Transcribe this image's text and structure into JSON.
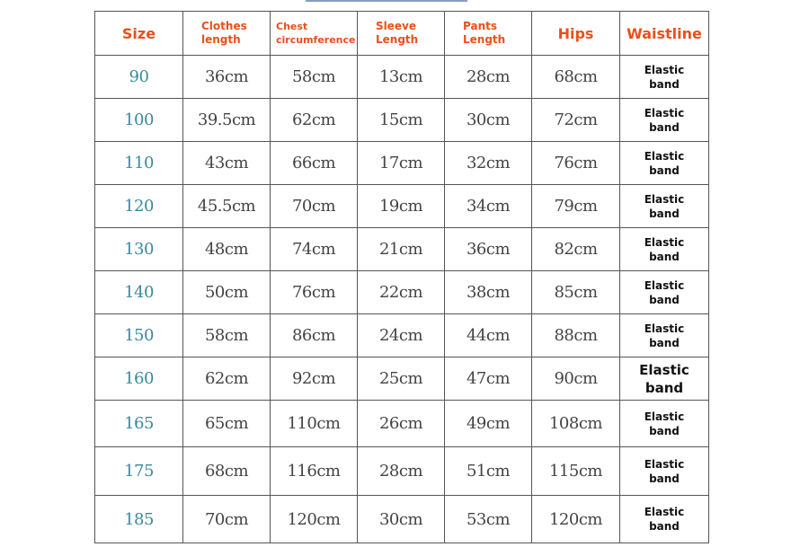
{
  "table": {
    "header": [
      "Size",
      "Clothes length",
      "Chest circumference",
      "Sleeve Length",
      "Pants Length",
      "Hips",
      "Waistline"
    ],
    "rows": [
      [
        "90",
        "36cm",
        "58cm",
        "13cm",
        "28cm",
        "68cm",
        "Elastic band"
      ],
      [
        "100",
        "39.5cm",
        "62cm",
        "15cm",
        "30cm",
        "72cm",
        "Elastic band"
      ],
      [
        "110",
        "43cm",
        "66cm",
        "17cm",
        "32cm",
        "76cm",
        "Elastic band"
      ],
      [
        "120",
        "45.5cm",
        "70cm",
        "19cm",
        "34cm",
        "79cm",
        "Elastic band"
      ],
      [
        "130",
        "48cm",
        "74cm",
        "21cm",
        "36cm",
        "82cm",
        "Elastic band"
      ],
      [
        "140",
        "50cm",
        "76cm",
        "22cm",
        "38cm",
        "85cm",
        "Elastic band"
      ],
      [
        "150",
        "58cm",
        "86cm",
        "24cm",
        "44cm",
        "88cm",
        "Elastic band"
      ],
      [
        "160",
        "62cm",
        "92cm",
        "25cm",
        "47cm",
        "90cm",
        "Elastic band"
      ],
      [
        "165",
        "65cm",
        "110cm",
        "26cm",
        "49cm",
        "108cm",
        "Elastic band"
      ],
      [
        "175",
        "68cm",
        "116cm",
        "28cm",
        "51cm",
        "115cm",
        "Elastic band"
      ],
      [
        "185",
        "70cm",
        "120cm",
        "30cm",
        "53cm",
        "120cm",
        "Elastic band"
      ]
    ]
  }
}
